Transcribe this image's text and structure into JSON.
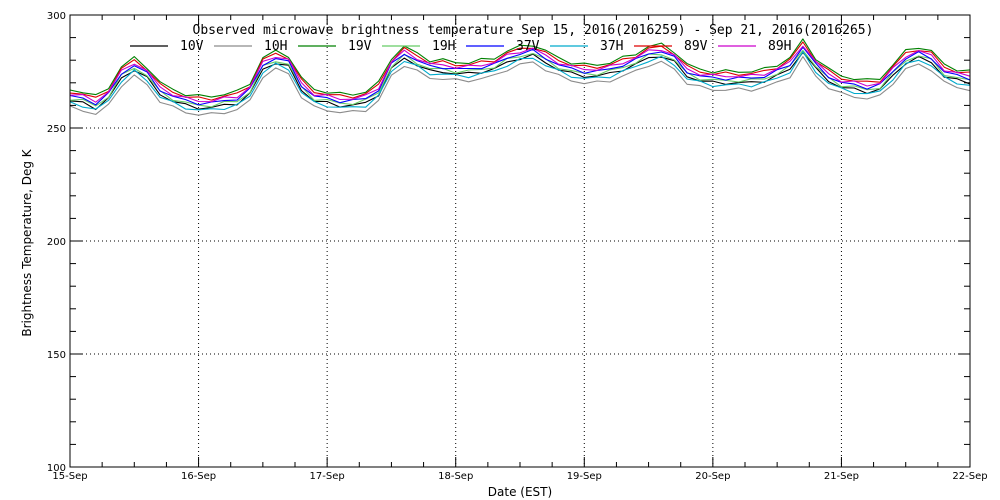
{
  "chart_data": {
    "type": "line",
    "title": "Observed microwave brightness temperature Sep 15, 2016(2016259) - Sep 21, 2016(2016265)",
    "xlabel": "Date (EST)",
    "ylabel": "Brightness Temperature, Deg K",
    "ylim": [
      100,
      300
    ],
    "yticks": [
      100,
      150,
      200,
      250,
      300
    ],
    "xlim": [
      0,
      7
    ],
    "xticks": [
      {
        "x": 0,
        "label": "15-Sep"
      },
      {
        "x": 1,
        "label": "16-Sep"
      },
      {
        "x": 2,
        "label": "17-Sep"
      },
      {
        "x": 3,
        "label": "18-Sep"
      },
      {
        "x": 4,
        "label": "19-Sep"
      },
      {
        "x": 5,
        "label": "20-Sep"
      },
      {
        "x": 6,
        "label": "21-Sep"
      },
      {
        "x": 7,
        "label": "22-Sep"
      }
    ],
    "grid": true,
    "legend_position": "top",
    "base_x": [
      0,
      0.1,
      0.2,
      0.3,
      0.4,
      0.5,
      0.6,
      0.7,
      0.8,
      0.9,
      1.0,
      1.1,
      1.2,
      1.3,
      1.4,
      1.5,
      1.6,
      1.7,
      1.8,
      1.9,
      2.0,
      2.1,
      2.2,
      2.3,
      2.4,
      2.5,
      2.6,
      2.7,
      2.8,
      2.9,
      3.0,
      3.1,
      3.2,
      3.3,
      3.4,
      3.5,
      3.6,
      3.7,
      3.8,
      3.9,
      4.0,
      4.1,
      4.2,
      4.3,
      4.4,
      4.5,
      4.6,
      4.7,
      4.8,
      4.9,
      5.0,
      5.1,
      5.2,
      5.3,
      5.4,
      5.5,
      5.6,
      5.7,
      5.8,
      5.9,
      6.0,
      6.1,
      6.2,
      6.3,
      6.4,
      6.5,
      6.6,
      6.7,
      6.8,
      6.9,
      7.0
    ],
    "base_y": [
      262,
      261,
      259,
      263,
      272,
      276,
      272,
      265,
      262,
      260,
      259,
      259,
      260,
      261,
      265,
      276,
      279,
      277,
      267,
      262,
      261,
      260,
      260,
      261,
      265,
      276,
      281,
      278,
      275,
      275,
      274,
      274,
      275,
      276,
      279,
      281,
      282,
      279,
      276,
      274,
      273,
      273,
      274,
      276,
      278,
      281,
      282,
      279,
      273,
      271,
      270,
      270,
      270,
      270,
      271,
      273,
      276,
      284,
      276,
      271,
      268,
      267,
      266,
      267,
      273,
      279,
      281,
      279,
      273,
      271,
      270
    ],
    "series": [
      {
        "name": "10V",
        "color": "#000000",
        "offset": 0
      },
      {
        "name": "10H",
        "color": "#8c8c8c",
        "offset": -3
      },
      {
        "name": "19V",
        "color": "#008000",
        "offset": 5
      },
      {
        "name": "19H",
        "color": "#66cc66",
        "offset": 1
      },
      {
        "name": "37V",
        "color": "#0000ff",
        "offset": 2
      },
      {
        "name": "37H",
        "color": "#00aacc",
        "offset": -1
      },
      {
        "name": "89V",
        "color": "#dd0000",
        "offset": 4
      },
      {
        "name": "89H",
        "color": "#cc00cc",
        "offset": 3
      }
    ]
  }
}
